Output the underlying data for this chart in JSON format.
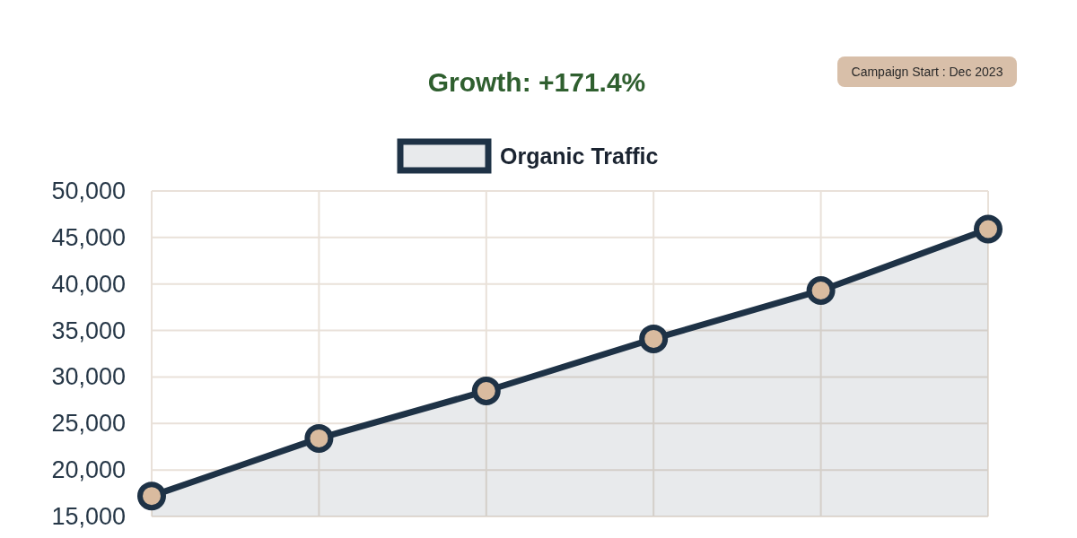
{
  "chart_data": {
    "type": "area",
    "subtitle": "Growth: +171.4%",
    "annotations": [
      "Campaign Start : Dec 2023"
    ],
    "categories": [
      null,
      null,
      null,
      null,
      null,
      null
    ],
    "series": [
      {
        "name": "Organic Traffic",
        "color": "#1e3246",
        "values": [
          17200,
          23400,
          28500,
          34100,
          39300,
          45900
        ]
      }
    ],
    "ylim": [
      15000,
      50000
    ],
    "yticks": [
      {
        "value": 15000,
        "label": "15,000"
      },
      {
        "value": 20000,
        "label": "20,000"
      },
      {
        "value": 25000,
        "label": "25,000"
      },
      {
        "value": 30000,
        "label": "30,000"
      },
      {
        "value": 35000,
        "label": "35,000"
      },
      {
        "value": 40000,
        "label": "40,000"
      },
      {
        "value": 45000,
        "label": "45,000"
      },
      {
        "value": 50000,
        "label": "50,000"
      }
    ],
    "grid": true,
    "legend": "top",
    "marker": "circle",
    "line_style": "solid"
  }
}
